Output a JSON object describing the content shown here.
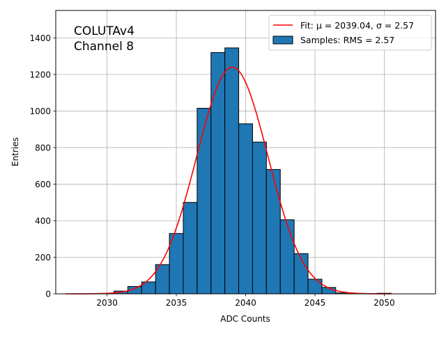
{
  "chart_data": {
    "type": "bar",
    "xlabel": "ADC Counts",
    "ylabel": "Entries",
    "xlim": [
      2026.3,
      2053.7
    ],
    "ylim": [
      0,
      1550
    ],
    "xticks": [
      2030,
      2035,
      2040,
      2045,
      2050
    ],
    "yticks": [
      0,
      200,
      400,
      600,
      800,
      1000,
      1200,
      1400
    ],
    "grid": true,
    "legend_position": "top-right",
    "annotation": {
      "line1": "COLUTAv4",
      "line2": "Channel 8"
    },
    "histogram": {
      "name": "Samples: RMS = 2.57",
      "color": "#1f77b4",
      "edgecolor": "#000000",
      "bin_edges": [
        2030.5,
        2031.5,
        2032.5,
        2033.5,
        2034.5,
        2035.5,
        2036.5,
        2037.5,
        2038.5,
        2039.5,
        2040.5,
        2041.5,
        2042.5,
        2043.5,
        2044.5,
        2045.5,
        2046.5,
        2047.5,
        2048.5,
        2049.5,
        2050.5
      ],
      "counts": [
        15,
        40,
        65,
        160,
        330,
        500,
        1015,
        1320,
        1345,
        930,
        830,
        680,
        405,
        220,
        80,
        35,
        5,
        2,
        1,
        3
      ]
    },
    "fit": {
      "name": "Fit: μ = 2039.04, σ = 2.57",
      "color": "#ff0000",
      "mu": 2039.04,
      "sigma": 2.57,
      "amplitude": 1240,
      "x_range": [
        2027,
        2050.5
      ]
    },
    "legend": [
      {
        "label": "Fit: μ = 2039.04, σ = 2.57",
        "kind": "line",
        "color": "#ff0000"
      },
      {
        "label": "Samples: RMS = 2.57",
        "kind": "patch",
        "color": "#1f77b4"
      }
    ]
  }
}
